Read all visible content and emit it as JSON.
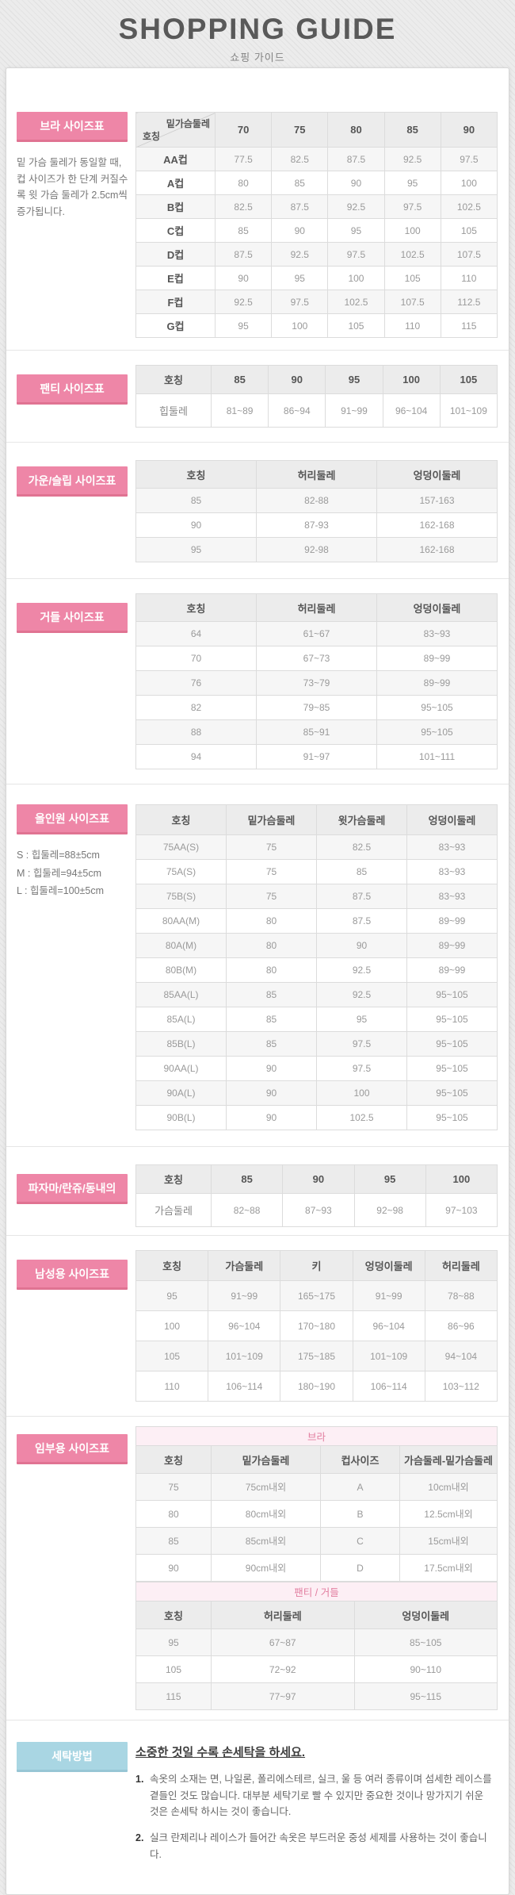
{
  "page": {
    "title": "SHOPPING GUIDE",
    "subtitle": "쇼핑 가이드"
  },
  "colors": {
    "accent_pink": "#ee86a7",
    "accent_blue": "#a9d6e3",
    "band_pink_bg": "#fdeff5",
    "band_pink_text": "#e27d9f"
  },
  "bra": {
    "label": "브라 사이즈표",
    "note": "밑 가슴 둘레가 동일할 때, 컵 사이즈가 한 단계 커질수록 윗 가슴 둘레가 2.5cm씩 증가됩니다.",
    "corner_top": "밑가슴둘레",
    "corner_bottom": "호칭",
    "columns": [
      "70",
      "75",
      "80",
      "85",
      "90"
    ],
    "rows": [
      [
        "AA컵",
        "77.5",
        "82.5",
        "87.5",
        "92.5",
        "97.5"
      ],
      [
        "A컵",
        "80",
        "85",
        "90",
        "95",
        "100"
      ],
      [
        "B컵",
        "82.5",
        "87.5",
        "92.5",
        "97.5",
        "102.5"
      ],
      [
        "C컵",
        "85",
        "90",
        "95",
        "100",
        "105"
      ],
      [
        "D컵",
        "87.5",
        "92.5",
        "97.5",
        "102.5",
        "107.5"
      ],
      [
        "E컵",
        "90",
        "95",
        "100",
        "105",
        "110"
      ],
      [
        "F컵",
        "92.5",
        "97.5",
        "102.5",
        "107.5",
        "112.5"
      ],
      [
        "G컵",
        "95",
        "100",
        "105",
        "110",
        "115"
      ]
    ]
  },
  "panty": {
    "label": "팬티 사이즈표",
    "header": [
      "호칭",
      "85",
      "90",
      "95",
      "100",
      "105"
    ],
    "row": [
      "힙둘레",
      "81~89",
      "86~94",
      "91~99",
      "96~104",
      "101~109"
    ]
  },
  "gown": {
    "label": "가운/슬립 사이즈표",
    "header": [
      "호칭",
      "허리둘레",
      "엉덩이둘레"
    ],
    "rows": [
      [
        "85",
        "82-88",
        "157-163"
      ],
      [
        "90",
        "87-93",
        "162-168"
      ],
      [
        "95",
        "92-98",
        "162-168"
      ]
    ]
  },
  "girdle": {
    "label": "거들 사이즈표",
    "header": [
      "호칭",
      "허리둘레",
      "엉덩이둘레"
    ],
    "rows": [
      [
        "64",
        "61~67",
        "83~93"
      ],
      [
        "70",
        "67~73",
        "89~99"
      ],
      [
        "76",
        "73~79",
        "89~99"
      ],
      [
        "82",
        "79~85",
        "95~105"
      ],
      [
        "88",
        "85~91",
        "95~105"
      ],
      [
        "94",
        "91~97",
        "101~111"
      ]
    ]
  },
  "allinone": {
    "label": "올인원 사이즈표",
    "notes": [
      "S : 힙둘레=88±5cm",
      "M : 힙둘레=94±5cm",
      "L : 힙둘레=100±5cm"
    ],
    "header": [
      "호칭",
      "밑가슴둘레",
      "윗가슴둘레",
      "엉덩이둘레"
    ],
    "rows": [
      [
        "75AA(S)",
        "75",
        "82.5",
        "83~93"
      ],
      [
        "75A(S)",
        "75",
        "85",
        "83~93"
      ],
      [
        "75B(S)",
        "75",
        "87.5",
        "83~93"
      ],
      [
        "80AA(M)",
        "80",
        "87.5",
        "89~99"
      ],
      [
        "80A(M)",
        "80",
        "90",
        "89~99"
      ],
      [
        "80B(M)",
        "80",
        "92.5",
        "89~99"
      ],
      [
        "85AA(L)",
        "85",
        "92.5",
        "95~105"
      ],
      [
        "85A(L)",
        "85",
        "95",
        "95~105"
      ],
      [
        "85B(L)",
        "85",
        "97.5",
        "95~105"
      ],
      [
        "90AA(L)",
        "90",
        "97.5",
        "95~105"
      ],
      [
        "90A(L)",
        "90",
        "100",
        "95~105"
      ],
      [
        "90B(L)",
        "90",
        "102.5",
        "95~105"
      ]
    ]
  },
  "pajama": {
    "label": "파자마/란쥬/동내의",
    "header": [
      "호칭",
      "85",
      "90",
      "95",
      "100"
    ],
    "row": [
      "가슴둘레",
      "82~88",
      "87~93",
      "92~98",
      "97~103"
    ]
  },
  "men": {
    "label": "남성용 사이즈표",
    "header": [
      "호칭",
      "가슴둘레",
      "키",
      "엉덩이둘레",
      "허리둘레"
    ],
    "rows": [
      [
        "95",
        "91~99",
        "165~175",
        "91~99",
        "78~88"
      ],
      [
        "100",
        "96~104",
        "170~180",
        "96~104",
        "86~96"
      ],
      [
        "105",
        "101~109",
        "175~185",
        "101~109",
        "94~104"
      ],
      [
        "110",
        "106~114",
        "180~190",
        "106~114",
        "103~112"
      ]
    ]
  },
  "maternity": {
    "label": "임부용 사이즈표",
    "bra_band": "브라",
    "bra_header": [
      "호칭",
      "밑가슴둘레",
      "컵사이즈",
      "가슴둘레-밑가슴둘레"
    ],
    "bra_rows": [
      [
        "75",
        "75cm내외",
        "A",
        "10cm내외"
      ],
      [
        "80",
        "80cm내외",
        "B",
        "12.5cm내외"
      ],
      [
        "85",
        "85cm내외",
        "C",
        "15cm내외"
      ],
      [
        "90",
        "90cm내외",
        "D",
        "17.5cm내외"
      ]
    ],
    "panty_band": "팬티 / 거들",
    "panty_header": [
      "호칭",
      "허리둘레",
      "엉덩이둘레"
    ],
    "panty_rows": [
      [
        "95",
        "67~87",
        "85~105"
      ],
      [
        "105",
        "72~92",
        "90~110"
      ],
      [
        "115",
        "77~97",
        "95~115"
      ]
    ]
  },
  "washing": {
    "label": "세탁방법",
    "title": "소중한 것일 수록 손세탁을 하세요.",
    "items": [
      {
        "num": "1.",
        "text": "속옷의 소재는 면, 나일론, 폴리에스테르, 실크, 울 등 여러 종류이며 섬세한 레이스를 곁들인 것도 많습니다. 대부분 세탁기로 빨 수 있지만 중요한 것이나 망가지기 쉬운 것은 손세탁 하시는 것이 좋습니다."
      },
      {
        "num": "2.",
        "text": "실크 란제리나 레이스가 들어간 속옷은 부드러운 중성 세제를 사용하는 것이 좋습니다."
      }
    ]
  }
}
